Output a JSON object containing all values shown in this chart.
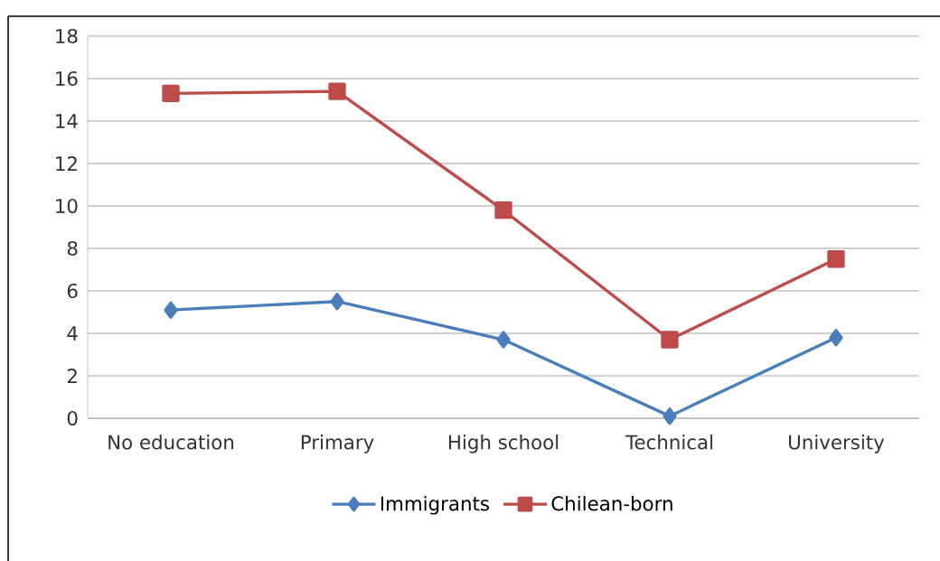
{
  "chart_data": {
    "type": "line",
    "categories": [
      "No education",
      "Primary",
      "High school",
      "Technical",
      "University"
    ],
    "series": [
      {
        "name": "Immigrants",
        "color": "#4a7ebb",
        "marker": "diamond",
        "values": [
          5.1,
          5.5,
          3.7,
          0.1,
          3.8
        ]
      },
      {
        "name": "Chilean-born",
        "color": "#be4b48",
        "marker": "square",
        "values": [
          15.3,
          15.4,
          9.8,
          3.7,
          7.5
        ]
      }
    ],
    "ylim": [
      0,
      18
    ],
    "yticks": [
      0,
      2,
      4,
      6,
      8,
      10,
      12,
      14,
      16,
      18
    ],
    "grid": "y",
    "legend": "bottom",
    "line_style": "solid"
  }
}
